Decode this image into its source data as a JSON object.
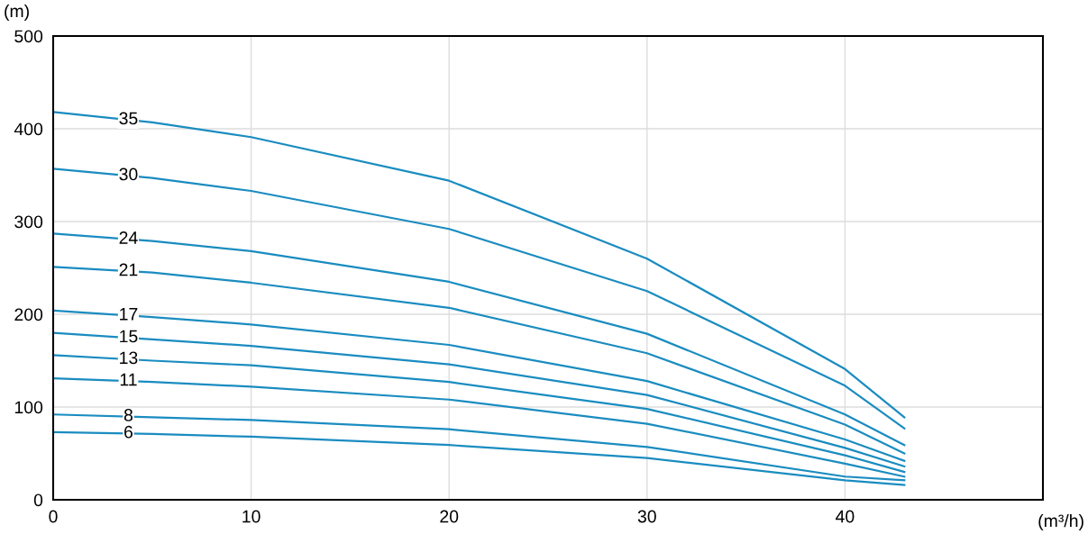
{
  "chart_data": {
    "type": "line",
    "xlabel": "(m³/h)",
    "ylabel": "(m)",
    "x": [
      0,
      5,
      10,
      20,
      30,
      40,
      43
    ],
    "series": [
      {
        "name": "35",
        "color": "#1a8cc0",
        "values": [
          418,
          407,
          391,
          344,
          260,
          141,
          89
        ]
      },
      {
        "name": "30",
        "color": "#1a8cc0",
        "values": [
          357,
          347,
          333,
          292,
          225,
          123,
          77
        ]
      },
      {
        "name": "24",
        "color": "#1a8cc0",
        "values": [
          287,
          279,
          268,
          235,
          179,
          92,
          59
        ]
      },
      {
        "name": "21",
        "color": "#1a8cc0",
        "values": [
          251,
          245,
          234,
          207,
          158,
          81,
          50
        ]
      },
      {
        "name": "17",
        "color": "#1a8cc0",
        "values": [
          204,
          197,
          189,
          167,
          128,
          65,
          42
        ]
      },
      {
        "name": "15",
        "color": "#1a8cc0",
        "values": [
          180,
          173,
          166,
          146,
          113,
          56,
          36
        ]
      },
      {
        "name": "13",
        "color": "#1a8cc0",
        "values": [
          156,
          150,
          145,
          127,
          98,
          48,
          30
        ]
      },
      {
        "name": "11",
        "color": "#1a8cc0",
        "values": [
          131,
          127,
          122,
          108,
          82,
          39,
          25
        ]
      },
      {
        "name": "8",
        "color": "#1a8cc0",
        "values": [
          92,
          89,
          86,
          76,
          57,
          25,
          21
        ]
      },
      {
        "name": "6",
        "color": "#1a8cc0",
        "values": [
          73,
          71,
          68,
          59,
          45,
          21,
          16
        ]
      }
    ],
    "xlim": [
      0,
      50
    ],
    "xticks": [
      0,
      10,
      20,
      30,
      40
    ],
    "ylim": [
      0,
      500
    ],
    "yticks": [
      0,
      100,
      200,
      300,
      400,
      500
    ],
    "grid": true,
    "line_style": "solid",
    "marker": "none"
  }
}
